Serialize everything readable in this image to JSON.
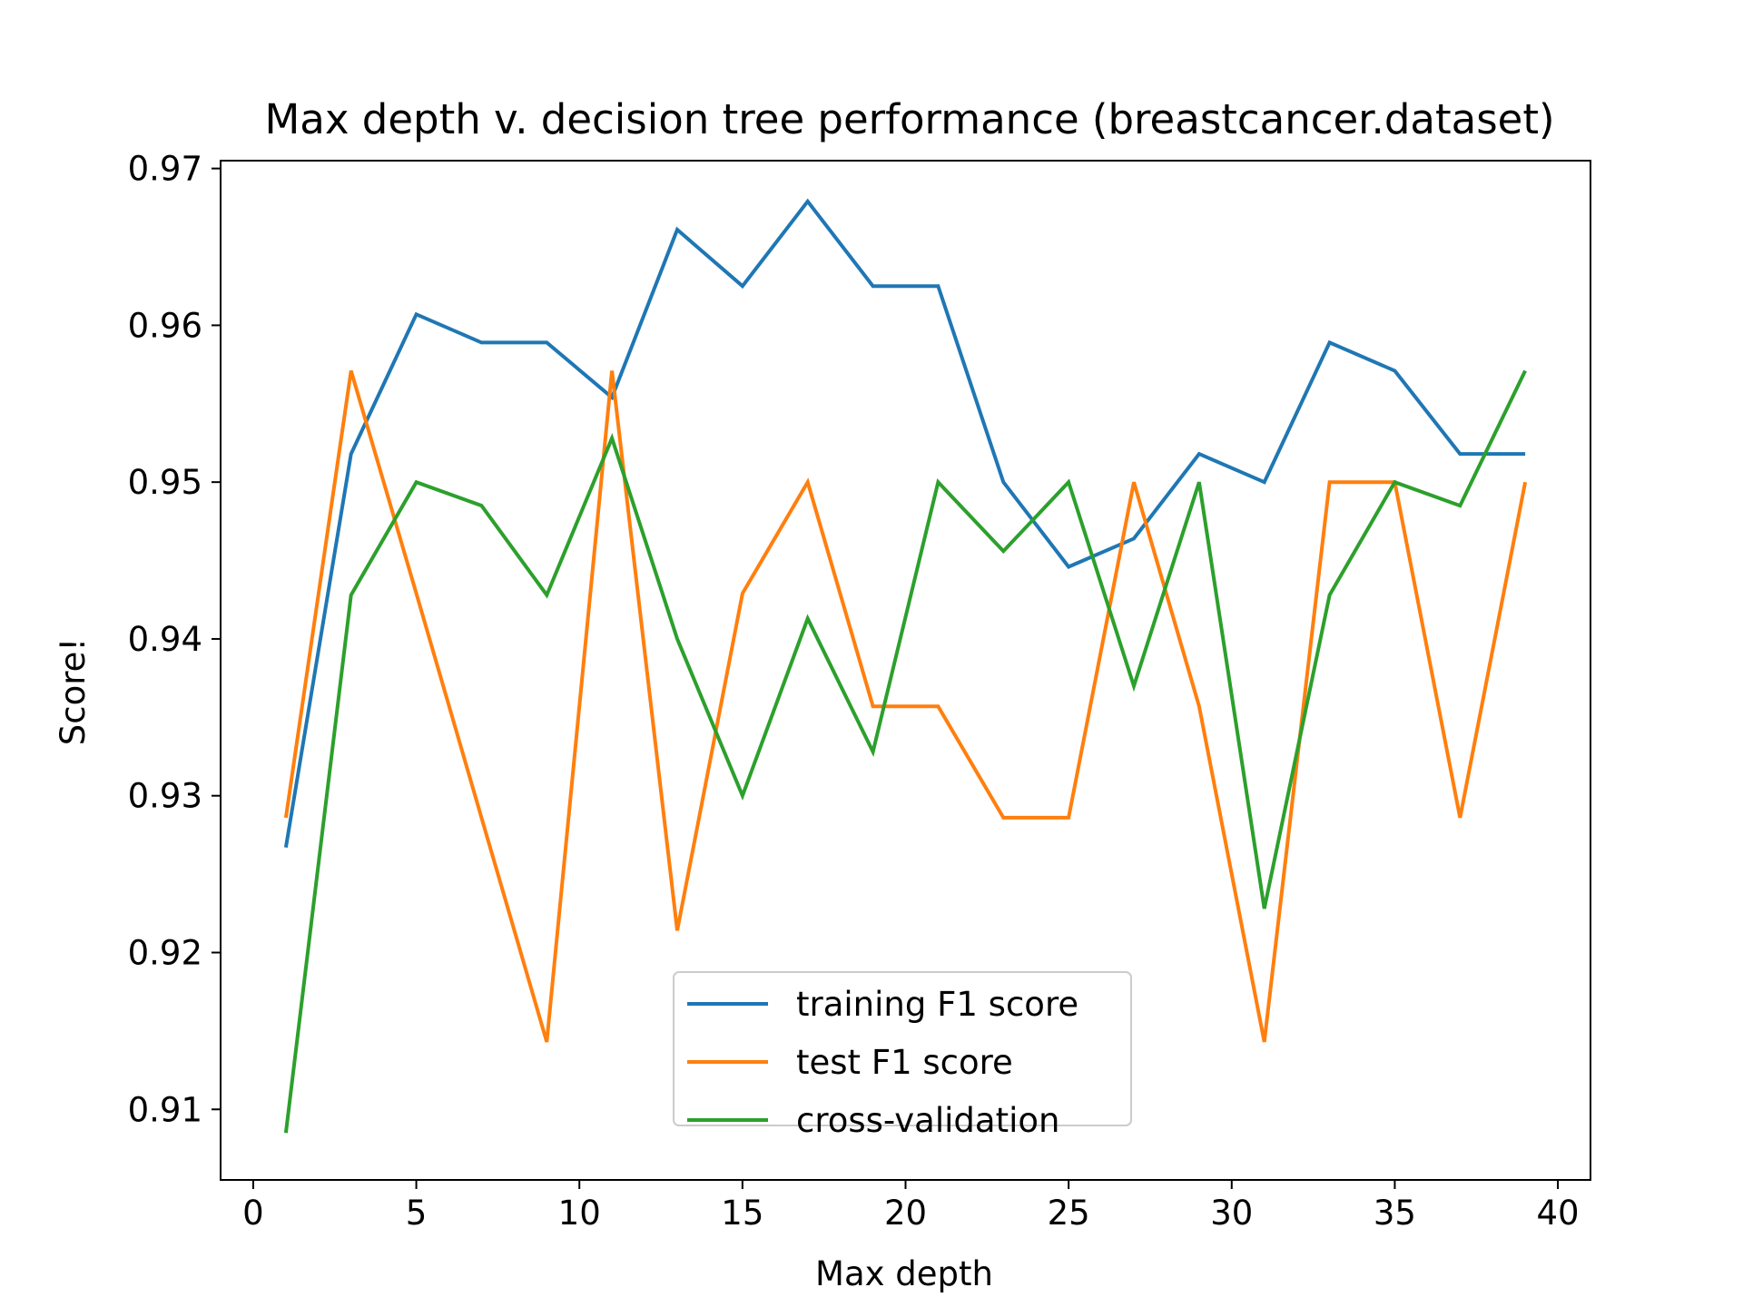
{
  "chart_data": {
    "type": "line",
    "title": "Max depth v. decision tree performance (breastcancer.dataset)",
    "xlabel": "Max depth",
    "ylabel": "Score!",
    "xlim": [
      -1,
      41
    ],
    "ylim": [
      0.9055,
      0.9705
    ],
    "xticks": [
      0,
      5,
      10,
      15,
      20,
      25,
      30,
      35,
      40
    ],
    "yticks": [
      0.91,
      0.92,
      0.93,
      0.94,
      0.95,
      0.96,
      0.97
    ],
    "x": [
      1,
      3,
      5,
      7,
      9,
      11,
      13,
      15,
      17,
      19,
      21,
      23,
      25,
      27,
      29,
      31,
      33,
      35,
      37,
      39
    ],
    "series": [
      {
        "name": "training F1 score",
        "color": "#1f77b4",
        "values": [
          0.9267,
          0.9518,
          0.9607,
          0.9589,
          0.9589,
          0.9554,
          0.9661,
          0.9625,
          0.9679,
          0.9625,
          0.9625,
          0.95,
          0.9446,
          0.9464,
          0.9518,
          0.95,
          0.9589,
          0.9571,
          0.9518,
          0.9518
        ]
      },
      {
        "name": "test F1 score",
        "color": "#ff7f0e",
        "values": [
          0.9286,
          0.9571,
          0.9429,
          0.9286,
          0.9143,
          0.9571,
          0.9214,
          0.9429,
          0.95,
          0.9357,
          0.9357,
          0.9286,
          0.9286,
          0.95,
          0.9357,
          0.9143,
          0.95,
          0.95,
          0.9286,
          0.95
        ]
      },
      {
        "name": "cross-validation",
        "color": "#2ca02c",
        "values": [
          0.9085,
          0.9428,
          0.95,
          0.9485,
          0.9428,
          0.9528,
          0.94,
          0.93,
          0.9413,
          0.9328,
          0.95,
          0.9456,
          0.95,
          0.937,
          0.95,
          0.9228,
          0.9428,
          0.95,
          0.9485,
          0.9571
        ]
      }
    ],
    "grid": false,
    "legend_position": "lower-center"
  }
}
